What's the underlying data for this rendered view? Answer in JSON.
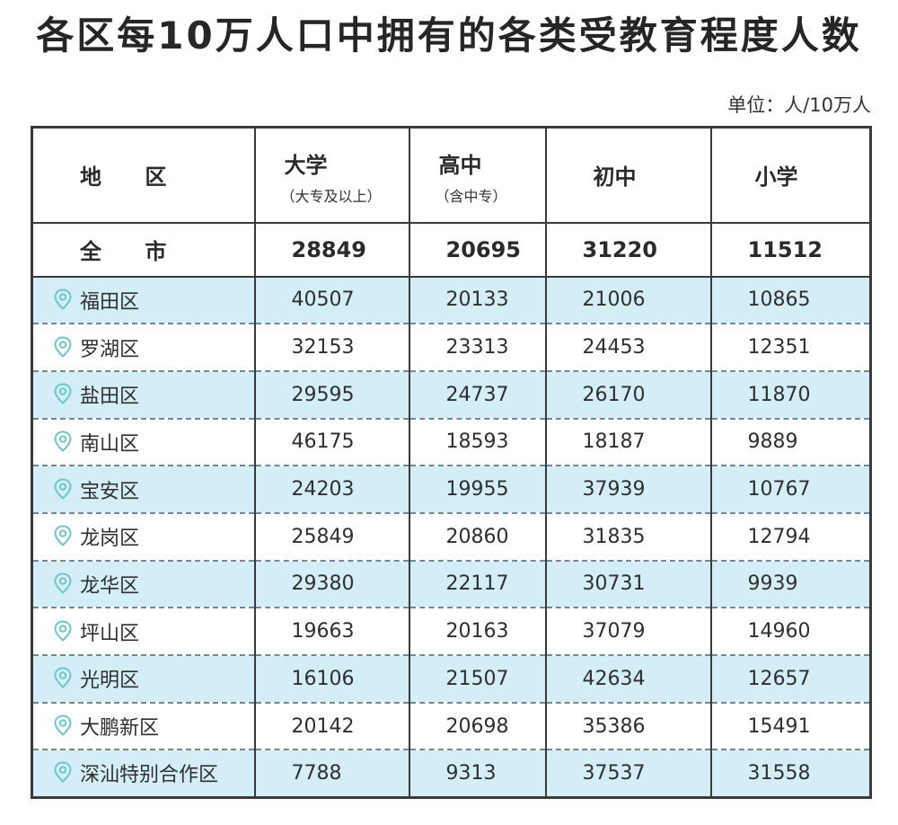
{
  "title": "各区每10万人口中拥有的各类受教育程度人数",
  "unit_note": "单位：人/10万人",
  "colors": {
    "row_shade": "#d3eef7",
    "pin_icon": "#6fc6c8",
    "border": "#3a3a3a"
  },
  "table": {
    "headers": {
      "region": "地 区",
      "university": "大学",
      "university_note": "（大专及以上）",
      "highschool": "高中",
      "highschool_note": "（含中专）",
      "middle": "初中",
      "primary": "小学"
    },
    "total": {
      "region": "全 市",
      "university": "28849",
      "highschool": "20695",
      "middle": "31220",
      "primary": "11512"
    },
    "rows": [
      {
        "region": "福田区",
        "university": "40507",
        "highschool": "20133",
        "middle": "21006",
        "primary": "10865",
        "icon": "location-pin-icon"
      },
      {
        "region": "罗湖区",
        "university": "32153",
        "highschool": "23313",
        "middle": "24453",
        "primary": "12351",
        "icon": "location-pin-icon"
      },
      {
        "region": "盐田区",
        "university": "29595",
        "highschool": "24737",
        "middle": "26170",
        "primary": "11870",
        "icon": "location-pin-icon"
      },
      {
        "region": "南山区",
        "university": "46175",
        "highschool": "18593",
        "middle": "18187",
        "primary": "9889",
        "icon": "location-pin-icon"
      },
      {
        "region": "宝安区",
        "university": "24203",
        "highschool": "19955",
        "middle": "37939",
        "primary": "10767",
        "icon": "location-pin-icon"
      },
      {
        "region": "龙岗区",
        "university": "25849",
        "highschool": "20860",
        "middle": "31835",
        "primary": "12794",
        "icon": "location-pin-icon"
      },
      {
        "region": "龙华区",
        "university": "29380",
        "highschool": "22117",
        "middle": "30731",
        "primary": "9939",
        "icon": "location-pin-icon"
      },
      {
        "region": "坪山区",
        "university": "19663",
        "highschool": "20163",
        "middle": "37079",
        "primary": "14960",
        "icon": "location-pin-icon"
      },
      {
        "region": "光明区",
        "university": "16106",
        "highschool": "21507",
        "middle": "42634",
        "primary": "12657",
        "icon": "location-pin-icon"
      },
      {
        "region": "大鹏新区",
        "university": "20142",
        "highschool": "20698",
        "middle": "35386",
        "primary": "15491",
        "icon": "location-pin-icon"
      },
      {
        "region": "深汕特别合作区",
        "university": "7788",
        "highschool": "9313",
        "middle": "37537",
        "primary": "31558",
        "icon": "location-pin-icon"
      }
    ]
  }
}
